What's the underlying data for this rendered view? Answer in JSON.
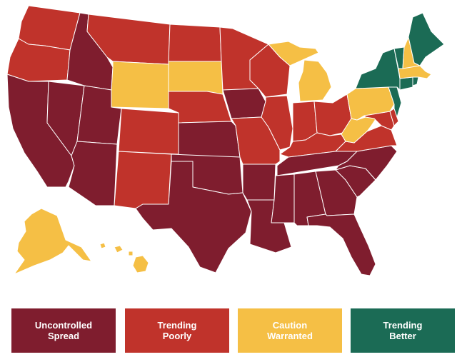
{
  "colors": {
    "uncontrolled": "#7f1d2e",
    "trending_poorly": "#c0332b",
    "caution": "#f5bf45",
    "trending_better": "#1b6b55"
  },
  "legend": [
    {
      "key": "uncontrolled",
      "label": "Uncontrolled\nSpread"
    },
    {
      "key": "trending_poorly",
      "label": "Trending\nPoorly"
    },
    {
      "key": "caution",
      "label": "Caution\nWarranted"
    },
    {
      "key": "trending_better",
      "label": "Trending\nBetter"
    }
  ],
  "states": {
    "WA": "trending_poorly",
    "OR": "trending_poorly",
    "CA": "uncontrolled",
    "NV": "uncontrolled",
    "ID": "uncontrolled",
    "MT": "trending_poorly",
    "WY": "caution",
    "UT": "uncontrolled",
    "AZ": "uncontrolled",
    "CO": "trending_poorly",
    "NM": "trending_poorly",
    "ND": "trending_poorly",
    "SD": "caution",
    "NE": "trending_poorly",
    "KS": "uncontrolled",
    "OK": "uncontrolled",
    "TX": "uncontrolled",
    "MN": "trending_poorly",
    "IA": "uncontrolled",
    "MO": "trending_poorly",
    "AR": "uncontrolled",
    "LA": "uncontrolled",
    "WI": "trending_poorly",
    "IL": "trending_poorly",
    "MI": "caution",
    "UP": "caution",
    "IN": "trending_poorly",
    "OH": "trending_poorly",
    "KY": "trending_poorly",
    "TN": "uncontrolled",
    "MS": "uncontrolled",
    "AL": "uncontrolled",
    "GA": "uncontrolled",
    "FL": "uncontrolled",
    "SC": "uncontrolled",
    "NC": "uncontrolled",
    "VA": "trending_poorly",
    "WV": "caution",
    "MD": "trending_poorly",
    "DE": "trending_poorly",
    "PA": "caution",
    "NJ": "trending_better",
    "NY": "trending_better",
    "CT": "trending_better",
    "RI": "trending_better",
    "MA": "caution",
    "VT": "trending_better",
    "NH": "caution",
    "ME": "trending_better",
    "AK": "caution",
    "HI": "caution"
  }
}
